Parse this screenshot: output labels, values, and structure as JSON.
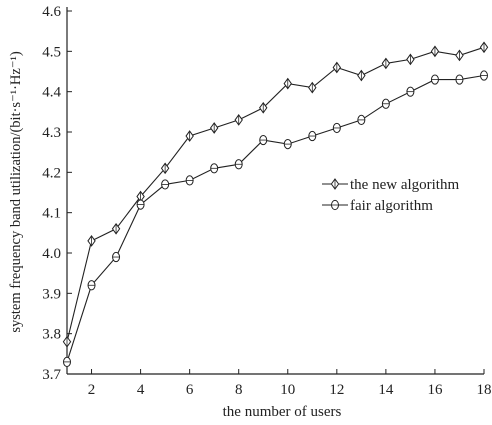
{
  "chart_data": {
    "type": "line",
    "title": "",
    "xlabel": "the number of users",
    "ylabel": "system frequency band utilization/(bit·s⁻¹·Hz⁻¹)",
    "xlim": [
      1,
      18
    ],
    "ylim": [
      3.7,
      4.6
    ],
    "x_ticks": [
      "2",
      "4",
      "6",
      "8",
      "10",
      "12",
      "14",
      "16",
      "18"
    ],
    "y_ticks": [
      "3.7",
      "3.8",
      "3.9",
      "4.0",
      "4.1",
      "4.2",
      "4.3",
      "4.4",
      "4.5",
      "4.6"
    ],
    "x": [
      1,
      2,
      3,
      4,
      5,
      6,
      7,
      8,
      9,
      10,
      11,
      12,
      13,
      14,
      15,
      16,
      17,
      18
    ],
    "grid": false,
    "legend_position": "right",
    "series": [
      {
        "name": "the new algorithm",
        "marker": "diamond",
        "values": [
          3.78,
          4.03,
          4.06,
          4.14,
          4.21,
          4.29,
          4.31,
          4.33,
          4.36,
          4.42,
          4.41,
          4.46,
          4.44,
          4.47,
          4.48,
          4.5,
          4.49,
          4.51
        ]
      },
      {
        "name": "fair algorithm",
        "marker": "circle",
        "values": [
          3.73,
          3.92,
          3.99,
          4.12,
          4.17,
          4.18,
          4.21,
          4.22,
          4.28,
          4.27,
          4.29,
          4.31,
          4.33,
          4.37,
          4.4,
          4.43,
          4.43,
          4.44
        ]
      }
    ]
  }
}
